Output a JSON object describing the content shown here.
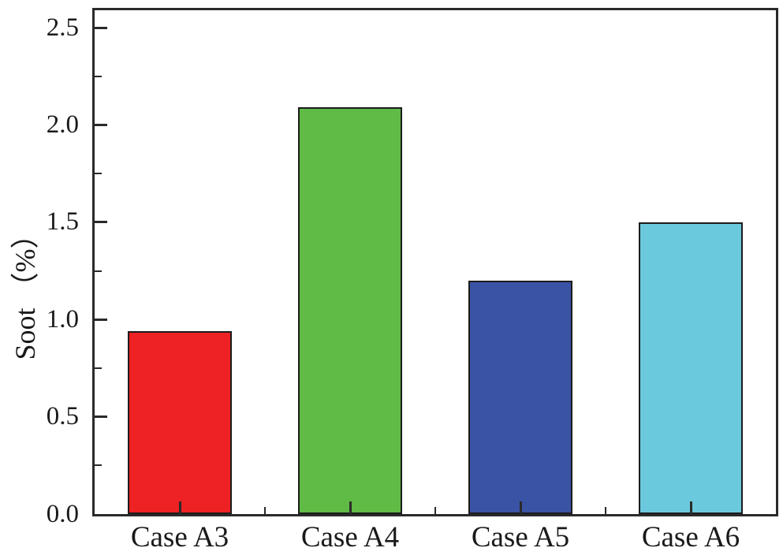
{
  "figure": {
    "background": "#ffffff",
    "frame_color": "#2a2a2a"
  },
  "chart_data": {
    "type": "bar",
    "title": "",
    "categories": [
      "Case A3",
      "Case A4",
      "Case A5",
      "Case A6"
    ],
    "values": [
      0.94,
      2.09,
      1.2,
      1.5
    ],
    "bar_colors": [
      "#ee2124",
      "#5fbb46",
      "#3a53a4",
      "#6bc9dd"
    ],
    "bar_border_color": "#1c1c1c",
    "xlabel": "",
    "ylabel": "Soot （%）",
    "ylim": [
      0,
      2.59
    ],
    "ytick_labels": [
      "0.0",
      "0.5",
      "1.0",
      "1.5",
      "2.0",
      "2.5"
    ],
    "yticks_major": [
      0.0,
      0.5,
      1.0,
      1.5,
      2.0,
      2.5
    ],
    "yticks_minor": [
      0.25,
      0.75,
      1.25,
      1.75,
      2.25
    ],
    "grid": false,
    "legend": null
  }
}
